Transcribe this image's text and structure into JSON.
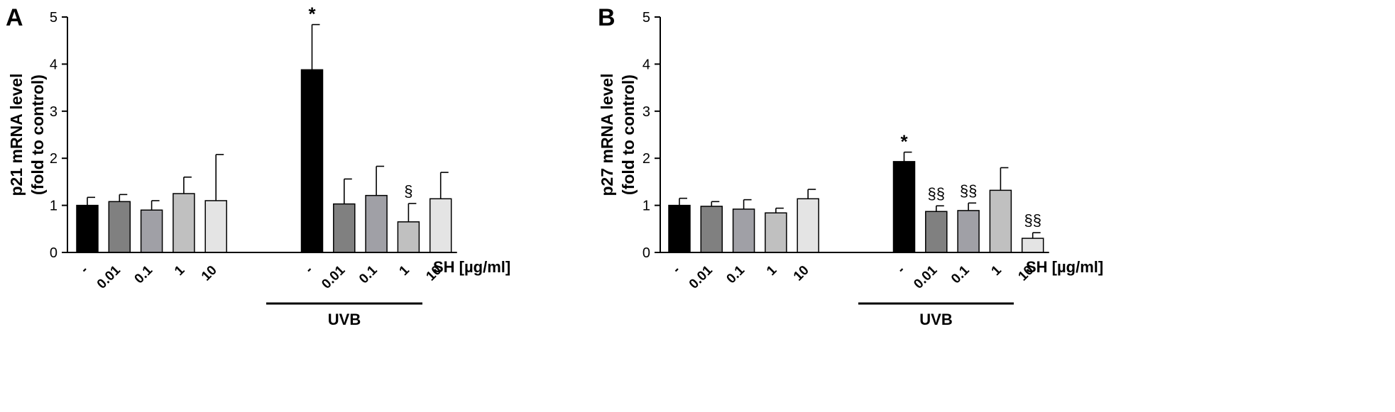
{
  "chart_data": [
    {
      "panel_label": "A",
      "type": "bar",
      "ylabel_line1": "p21 mRNA level",
      "ylabel_line2": "(fold to control)",
      "xlabel": "SH [µg/ml]",
      "group_label": "UVB",
      "ylim": [
        0,
        5
      ],
      "yticks": [
        "0",
        "1",
        "2",
        "3",
        "4",
        "5"
      ],
      "grid": false,
      "categories": [
        "-",
        "0.01",
        "0.1",
        "1",
        "10",
        "-",
        "0.01",
        "0.1",
        "1",
        "10"
      ],
      "values": [
        1.0,
        1.08,
        0.9,
        1.25,
        1.1,
        3.88,
        1.03,
        1.21,
        0.65,
        1.14
      ],
      "errors": [
        0.17,
        0.15,
        0.2,
        0.35,
        0.98,
        0.96,
        0.53,
        0.62,
        0.39,
        0.56
      ],
      "annotations": [
        "",
        "",
        "",
        "",
        "",
        "*",
        "",
        "",
        "§",
        ""
      ],
      "colors": [
        "#000000",
        "#808080",
        "#a0a0a6",
        "#c0c0c0",
        "#e4e4e4",
        "#000000",
        "#808080",
        "#a0a0a6",
        "#c0c0c0",
        "#e4e4e4"
      ]
    },
    {
      "panel_label": "B",
      "type": "bar",
      "ylabel_line1": "p27 mRNA level",
      "ylabel_line2": "(fold to control)",
      "xlabel": "SH [µg/ml]",
      "group_label": "UVB",
      "ylim": [
        0,
        5
      ],
      "yticks": [
        "0",
        "1",
        "2",
        "3",
        "4",
        "5"
      ],
      "grid": false,
      "categories": [
        "-",
        "0.01",
        "0.1",
        "1",
        "10",
        "-",
        "0.01",
        "0.1",
        "1",
        "10"
      ],
      "values": [
        1.0,
        0.98,
        0.92,
        0.84,
        1.14,
        1.93,
        0.87,
        0.89,
        1.32,
        0.3
      ],
      "errors": [
        0.15,
        0.1,
        0.2,
        0.1,
        0.2,
        0.2,
        0.12,
        0.16,
        0.48,
        0.12
      ],
      "annotations": [
        "",
        "",
        "",
        "",
        "",
        "*",
        "§§",
        "§§",
        "",
        "§§"
      ],
      "colors": [
        "#000000",
        "#808080",
        "#a0a0a6",
        "#c0c0c0",
        "#e4e4e4",
        "#000000",
        "#808080",
        "#a0a0a6",
        "#c0c0c0",
        "#e4e4e4"
      ]
    }
  ]
}
